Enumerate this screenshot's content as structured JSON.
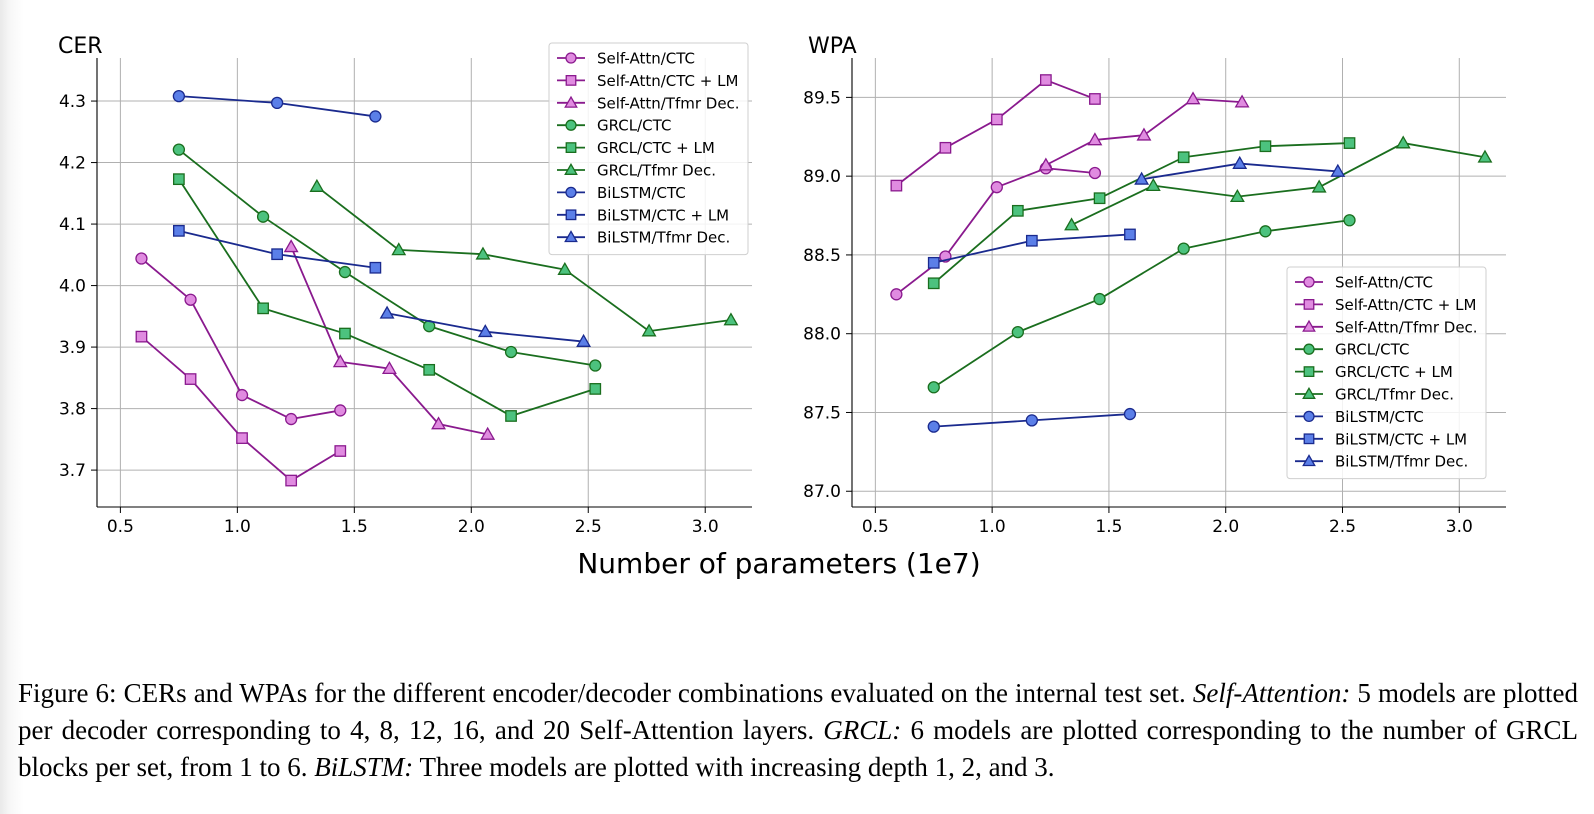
{
  "xlabel": "Number of parameters (1e7)",
  "colors": {
    "self_attn": "#8a1a8e",
    "self_attn_fill": "#e08be0",
    "grcl": "#1a6e1e",
    "grcl_fill": "#4cc27e",
    "bilstm": "#1a2a8e",
    "bilstm_fill": "#5b7fe8",
    "grid": "#b0b0b0"
  },
  "chart_data": [
    {
      "type": "line",
      "title": "CER",
      "ylabel": "CER",
      "xlim": [
        0.4,
        3.2
      ],
      "ylim": [
        3.64,
        4.37
      ],
      "xticks": [
        0.5,
        1.0,
        1.5,
        2.0,
        2.5,
        3.0
      ],
      "xtick_labels": [
        "0.5",
        "1.0",
        "1.5",
        "2.0",
        "2.5",
        "3.0"
      ],
      "yticks": [
        3.7,
        3.8,
        3.9,
        4.0,
        4.1,
        4.2,
        4.3
      ],
      "ytick_labels": [
        "3.7",
        "3.8",
        "3.9",
        "4.0",
        "4.1",
        "4.2",
        "4.3"
      ],
      "grid": true,
      "legend": "top-right",
      "series": [
        {
          "name": "Self-Attn/CTC",
          "family": "self_attn",
          "marker": "circle",
          "x": [
            0.59,
            0.8,
            1.02,
            1.23,
            1.44
          ],
          "y": [
            4.044,
            3.977,
            3.822,
            3.783,
            3.797
          ]
        },
        {
          "name": "Self-Attn/CTC + LM",
          "family": "self_attn",
          "marker": "square",
          "x": [
            0.59,
            0.8,
            1.02,
            1.23,
            1.44
          ],
          "y": [
            3.917,
            3.848,
            3.752,
            3.683,
            3.731
          ]
        },
        {
          "name": "Self-Attn/Tfmr Dec.",
          "family": "self_attn",
          "marker": "triangle",
          "x": [
            1.23,
            1.44,
            1.65,
            1.86,
            2.07
          ],
          "y": [
            4.063,
            3.876,
            3.865,
            3.775,
            3.758
          ]
        },
        {
          "name": "GRCL/CTC",
          "family": "grcl",
          "marker": "circle",
          "x": [
            0.75,
            1.11,
            1.46,
            1.82,
            2.17,
            2.53
          ],
          "y": [
            4.221,
            4.112,
            4.022,
            3.934,
            3.892,
            3.87
          ]
        },
        {
          "name": "GRCL/CTC + LM",
          "family": "grcl",
          "marker": "square",
          "x": [
            0.75,
            1.11,
            1.46,
            1.82,
            2.17,
            2.53
          ],
          "y": [
            4.173,
            3.963,
            3.922,
            3.863,
            3.788,
            3.832
          ]
        },
        {
          "name": "GRCL/Tfmr Dec.",
          "family": "grcl",
          "marker": "triangle",
          "x": [
            1.34,
            1.69,
            2.05,
            2.4,
            2.76,
            3.11
          ],
          "y": [
            4.161,
            4.058,
            4.051,
            4.026,
            3.926,
            3.944
          ]
        },
        {
          "name": "BiLSTM/CTC",
          "family": "bilstm",
          "marker": "circle",
          "x": [
            0.75,
            1.17,
            1.59
          ],
          "y": [
            4.308,
            4.297,
            4.275
          ]
        },
        {
          "name": "BiLSTM/CTC + LM",
          "family": "bilstm",
          "marker": "square",
          "x": [
            0.75,
            1.17,
            1.59
          ],
          "y": [
            4.089,
            4.051,
            4.029
          ]
        },
        {
          "name": "BiLSTM/Tfmr Dec.",
          "family": "bilstm",
          "marker": "triangle",
          "x": [
            1.64,
            2.06,
            2.48
          ],
          "y": [
            3.955,
            3.925,
            3.909
          ]
        }
      ]
    },
    {
      "type": "line",
      "title": "WPA",
      "ylabel": "WPA",
      "xlim": [
        0.4,
        3.2
      ],
      "ylim": [
        86.9,
        89.75
      ],
      "xticks": [
        0.5,
        1.0,
        1.5,
        2.0,
        2.5,
        3.0
      ],
      "xtick_labels": [
        "0.5",
        "1.0",
        "1.5",
        "2.0",
        "2.5",
        "3.0"
      ],
      "yticks": [
        87.0,
        87.5,
        88.0,
        88.5,
        89.0,
        89.5
      ],
      "ytick_labels": [
        "87.0",
        "87.5",
        "88.0",
        "88.5",
        "89.0",
        "89.5"
      ],
      "grid": true,
      "legend": "center-right",
      "series": [
        {
          "name": "Self-Attn/CTC",
          "family": "self_attn",
          "marker": "circle",
          "x": [
            0.59,
            0.8,
            1.02,
            1.23,
            1.44
          ],
          "y": [
            88.25,
            88.49,
            88.93,
            89.05,
            89.02
          ]
        },
        {
          "name": "Self-Attn/CTC + LM",
          "family": "self_attn",
          "marker": "square",
          "x": [
            0.59,
            0.8,
            1.02,
            1.23,
            1.44
          ],
          "y": [
            88.94,
            89.18,
            89.36,
            89.61,
            89.49
          ]
        },
        {
          "name": "Self-Attn/Tfmr Dec.",
          "family": "self_attn",
          "marker": "triangle",
          "x": [
            1.23,
            1.44,
            1.65,
            1.86,
            2.07
          ],
          "y": [
            89.07,
            89.23,
            89.26,
            89.49,
            89.47
          ]
        },
        {
          "name": "GRCL/CTC",
          "family": "grcl",
          "marker": "circle",
          "x": [
            0.75,
            1.11,
            1.46,
            1.82,
            2.17,
            2.53
          ],
          "y": [
            87.66,
            88.01,
            88.22,
            88.54,
            88.65,
            88.72
          ]
        },
        {
          "name": "GRCL/CTC + LM",
          "family": "grcl",
          "marker": "square",
          "x": [
            0.75,
            1.11,
            1.46,
            1.82,
            2.17,
            2.53
          ],
          "y": [
            88.32,
            88.78,
            88.86,
            89.12,
            89.19,
            89.21
          ]
        },
        {
          "name": "GRCL/Tfmr Dec.",
          "family": "grcl",
          "marker": "triangle",
          "x": [
            1.34,
            1.69,
            2.05,
            2.4,
            2.76,
            3.11
          ],
          "y": [
            88.69,
            88.94,
            88.87,
            88.93,
            89.21,
            89.12
          ]
        },
        {
          "name": "BiLSTM/CTC",
          "family": "bilstm",
          "marker": "circle",
          "x": [
            0.75,
            1.17,
            1.59
          ],
          "y": [
            87.41,
            87.45,
            87.49
          ]
        },
        {
          "name": "BiLSTM/CTC + LM",
          "family": "bilstm",
          "marker": "square",
          "x": [
            0.75,
            1.17,
            1.59
          ],
          "y": [
            88.45,
            88.59,
            88.63
          ]
        },
        {
          "name": "BiLSTM/Tfmr Dec.",
          "family": "bilstm",
          "marker": "triangle",
          "x": [
            1.64,
            2.06,
            2.48
          ],
          "y": [
            88.98,
            89.08,
            89.03
          ]
        }
      ]
    }
  ],
  "caption": {
    "figure_label": "Figure 6:",
    "text1": " CERs and WPAs for the different encoder/decoder combinations evaluated on the internal test set. ",
    "term1": "Self-Attention:",
    "text2": " 5 models are plotted per decoder corresponding to 4, 8, 12, 16, and 20 Self-Attention layers. ",
    "term2": "GRCL:",
    "text3": " 6 models are plotted corresponding to the number of GRCL blocks per set, from 1 to 6. ",
    "term3": "BiLSTM:",
    "text4": " Three models are plotted with increasing depth 1, 2, and 3."
  }
}
